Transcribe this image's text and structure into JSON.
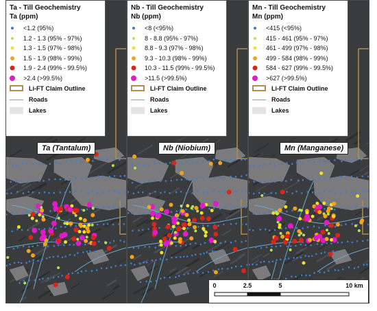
{
  "panels": [
    {
      "title": "Ta - Till Geochemistry",
      "unit": "Ta (ppm)",
      "label": "Ta (Tantalum)",
      "classes": [
        "<1.2 (95%)",
        "1.2 - 1.3 (95% - 97%)",
        "1.3 - 1.5 (97% - 98%)",
        "1.5 - 1.9 (98% - 99%)",
        "1.9 - 2.4 (99% - 99.5%)",
        ">2.4 (>99.5%)"
      ]
    },
    {
      "title": "Nb - Till Geochemistry",
      "unit": "Nb (ppm)",
      "label": "Nb (Niobium)",
      "classes": [
        "<8 (<95%)",
        "8 - 8.8 (95% - 97%)",
        "8.8 - 9.3 (97% - 98%)",
        "9.3 - 10.3 (98% - 99%)",
        "10.3 - 11.5 (99% - 99.5%)",
        ">11.5 (>99.5%)"
      ]
    },
    {
      "title": "Mn - Till Geochemistry",
      "unit": "Mn (ppm)",
      "label": "Mn (Manganese)",
      "classes": [
        "<415 (<95%)",
        "415 - 461 (95% - 97%)",
        "461 - 499 (97% - 98%)",
        "499 - 584 (98% - 99%)",
        "584 - 627 (99% - 99.5%)",
        ">627 (>99.5%)"
      ]
    }
  ],
  "features": {
    "claim": "Li-FT Claim Outline",
    "roads": "Roads",
    "lakes": "Lakes"
  },
  "class_colors": [
    "#3a7fd0",
    "#b9e05a",
    "#f3e02a",
    "#f5a21c",
    "#d8261c",
    "#e01bc8"
  ],
  "feature_colors": {
    "claim": "#b58d4a",
    "road": "#6ea9d2",
    "lake": "#7b7b7d",
    "terrain": "#3a3b3d"
  },
  "scalebar": {
    "ticks": [
      "0",
      "2.5",
      "5",
      "10 km"
    ]
  }
}
